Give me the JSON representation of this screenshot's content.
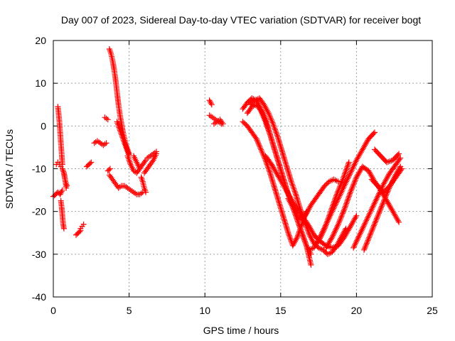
{
  "chart_data": {
    "type": "scatter",
    "title": "Day 007 of 2023, Sidereal Day-to-day VTEC variation (SDTVAR) for receiver bogt",
    "xlabel": "GPS time / hours",
    "ylabel": "SDTVAR / TECUs",
    "xlim": [
      0,
      25
    ],
    "ylim": [
      -40,
      20
    ],
    "xticks": [
      0,
      5,
      10,
      15,
      20,
      25
    ],
    "yticks": [
      -40,
      -30,
      -20,
      -10,
      0,
      10,
      20
    ],
    "grid": true,
    "legend": "none",
    "marker": "+",
    "color": "#ff0000",
    "traces": [
      {
        "x": [
          0.0,
          0.15,
          0.3,
          0.45,
          0.6
        ],
        "y": [
          -16.5,
          -16.0,
          -15.5,
          -16.0,
          -15.0
        ]
      },
      {
        "x": [
          0.2,
          0.3,
          0.4,
          0.5,
          0.6,
          0.7,
          0.8,
          0.9
        ],
        "y": [
          -9.0,
          -8.5,
          -9.0,
          -9.5,
          -10.0,
          -11.0,
          -13.0,
          -14.0
        ]
      },
      {
        "x": [
          0.3,
          0.35,
          0.4,
          0.45,
          0.5,
          0.55,
          0.6
        ],
        "y": [
          4.5,
          3.0,
          1.0,
          -1.5,
          -4.0,
          -6.5,
          -9.0
        ]
      },
      {
        "x": [
          0.5,
          0.55,
          0.6,
          0.65,
          0.7
        ],
        "y": [
          -17.5,
          -19.0,
          -21.0,
          -23.0,
          -24.0
        ]
      },
      {
        "x": [
          0.7,
          0.8,
          0.85
        ],
        "y": [
          -11.0,
          -13.0,
          -14.5
        ]
      },
      {
        "x": [
          1.5,
          1.65,
          1.8
        ],
        "y": [
          -25.5,
          -25.0,
          -24.5
        ]
      },
      {
        "x": [
          1.8,
          1.9,
          2.0
        ],
        "y": [
          -24.0,
          -23.5,
          -23.0
        ]
      },
      {
        "x": [
          2.2,
          2.35,
          2.5
        ],
        "y": [
          -9.5,
          -9.0,
          -8.5
        ]
      },
      {
        "x": [
          2.7,
          2.9,
          3.1,
          3.3,
          3.5
        ],
        "y": [
          -4.0,
          -3.5,
          -4.0,
          -4.5,
          -4.0
        ]
      },
      {
        "x": [
          3.4,
          3.6
        ],
        "y": [
          2.0,
          1.5
        ]
      },
      {
        "x": [
          3.6,
          3.75
        ],
        "y": [
          -10.5,
          -10.0
        ]
      },
      {
        "x": [
          3.7,
          3.9,
          4.1,
          4.3,
          4.5,
          4.7,
          4.9,
          5.1,
          5.3,
          5.5,
          5.7,
          5.9
        ],
        "y": [
          -11.5,
          -12.5,
          -13.5,
          -14.5,
          -14.0,
          -14.0,
          -14.5,
          -15.0,
          -15.5,
          -16.0,
          -16.0,
          -15.5
        ]
      },
      {
        "x": [
          3.7,
          3.8,
          3.9,
          4.0,
          4.1,
          4.2,
          4.3,
          4.4,
          4.5,
          4.6,
          4.7,
          4.8,
          4.9,
          5.0
        ],
        "y": [
          18.0,
          17.0,
          15.5,
          13.5,
          11.0,
          8.0,
          5.0,
          2.5,
          0.5,
          -1.5,
          -3.0,
          -4.5,
          -5.5,
          -6.5
        ]
      },
      {
        "x": [
          4.2,
          4.4,
          4.6,
          4.8,
          5.0
        ],
        "y": [
          1.0,
          -1.0,
          -3.0,
          -5.0,
          -7.0
        ]
      },
      {
        "x": [
          4.9,
          5.1,
          5.3,
          5.5,
          5.7
        ],
        "y": [
          -7.0,
          -9.0,
          -10.5,
          -11.0,
          -10.0
        ]
      },
      {
        "x": [
          5.3,
          5.5,
          5.7,
          5.9,
          6.1
        ],
        "y": [
          -7.0,
          -8.5,
          -10.0,
          -9.0,
          -8.0
        ]
      },
      {
        "x": [
          5.8,
          5.9,
          6.0,
          6.1
        ],
        "y": [
          -12.0,
          -13.0,
          -14.5,
          -15.5
        ]
      },
      {
        "x": [
          6.0,
          6.2,
          6.4,
          6.6,
          6.8
        ],
        "y": [
          -11.0,
          -10.0,
          -9.0,
          -8.0,
          -6.5
        ]
      },
      {
        "x": [
          6.2,
          6.4,
          6.6,
          6.8
        ],
        "y": [
          -7.5,
          -7.0,
          -6.5,
          -6.0
        ]
      },
      {
        "x": [
          10.3,
          10.45
        ],
        "y": [
          6.0,
          5.0
        ]
      },
      {
        "x": [
          10.3,
          10.5,
          10.7,
          10.9,
          11.1
        ],
        "y": [
          2.5,
          2.0,
          1.5,
          1.0,
          0.5
        ]
      },
      {
        "x": [
          10.6,
          10.8,
          11.0,
          11.2
        ],
        "y": [
          0.5,
          1.0,
          1.5,
          0.5
        ]
      },
      {
        "x": [
          12.5,
          12.8,
          13.1,
          13.4,
          13.7,
          14.0,
          14.3,
          14.6,
          14.9,
          15.2,
          15.5,
          15.8,
          16.1,
          16.4,
          16.7,
          17.0
        ],
        "y": [
          4.0,
          5.5,
          6.5,
          6.0,
          4.0,
          1.5,
          -2.0,
          -5.5,
          -9.0,
          -12.5,
          -16.0,
          -19.0,
          -22.0,
          -25.0,
          -28.0,
          -30.0
        ]
      },
      {
        "x": [
          12.8,
          13.1,
          13.4,
          13.7,
          14.0,
          14.3,
          14.6,
          14.9,
          15.2,
          15.5,
          15.8,
          16.1,
          16.4,
          16.7,
          17.0
        ],
        "y": [
          3.0,
          4.5,
          5.0,
          3.5,
          1.0,
          -2.0,
          -5.5,
          -9.0,
          -12.5,
          -16.0,
          -19.0,
          -22.0,
          -25.0,
          -28.0,
          -32.5
        ]
      },
      {
        "x": [
          12.5,
          12.8,
          13.1,
          13.4,
          13.7,
          14.0,
          14.3,
          14.6,
          14.9,
          15.2,
          15.5,
          15.8,
          16.1,
          16.4,
          16.7
        ],
        "y": [
          1.0,
          0.0,
          -1.5,
          -3.0,
          -5.5,
          -8.0,
          -11.0,
          -14.5,
          -18.0,
          -21.5,
          -25.0,
          -28.0,
          -26.0,
          -23.0,
          -20.0
        ]
      },
      {
        "x": [
          13.0,
          13.3,
          13.6,
          13.9,
          14.2,
          14.5,
          14.8,
          15.1,
          15.4,
          15.7,
          16.0,
          16.3,
          16.6,
          16.9,
          17.2,
          17.5,
          17.8,
          18.1,
          18.4,
          18.7,
          19.0,
          19.3
        ],
        "y": [
          5.0,
          6.0,
          6.5,
          5.0,
          3.0,
          0.5,
          -2.5,
          -6.0,
          -9.5,
          -13.0,
          -16.0,
          -19.5,
          -22.5,
          -25.5,
          -27.5,
          -28.5,
          -29.0,
          -30.0,
          -29.5,
          -28.0,
          -26.0,
          -24.0
        ]
      },
      {
        "x": [
          14.0,
          14.4,
          14.8,
          15.2,
          15.6,
          16.0,
          16.4,
          16.8,
          17.2,
          17.6,
          18.0,
          18.4,
          18.8,
          19.2,
          19.6,
          20.0
        ],
        "y": [
          -7.0,
          -9.0,
          -11.5,
          -14.0,
          -16.5,
          -19.0,
          -21.0,
          -23.0,
          -25.5,
          -27.0,
          -28.0,
          -28.5,
          -28.0,
          -26.0,
          -23.5,
          -21.0
        ]
      },
      {
        "x": [
          15.5,
          15.8,
          16.1,
          16.4,
          16.7,
          17.0,
          17.3,
          17.6,
          17.9,
          18.2,
          18.5,
          18.8
        ],
        "y": [
          -17.0,
          -19.0,
          -21.0,
          -22.0,
          -20.5,
          -18.5,
          -17.0,
          -15.5,
          -14.0,
          -13.0,
          -12.5,
          -13.0
        ]
      },
      {
        "x": [
          16.8,
          17.2,
          17.6,
          18.0,
          18.4,
          18.8,
          19.2,
          19.6,
          20.0,
          20.4,
          20.8,
          21.2
        ],
        "y": [
          -29.0,
          -28.5,
          -26.0,
          -23.0,
          -20.0,
          -17.0,
          -14.0,
          -11.0,
          -8.0,
          -5.5,
          -3.0,
          -1.5
        ]
      },
      {
        "x": [
          17.5,
          17.9,
          18.3,
          18.7,
          19.1,
          19.5
        ],
        "y": [
          -27.0,
          -24.0,
          -20.0,
          -16.0,
          -12.5,
          -8.5
        ]
      },
      {
        "x": [
          18.0,
          18.4,
          18.8,
          19.2,
          19.6,
          20.0,
          20.4,
          20.8,
          21.2,
          21.6,
          22.0,
          22.4,
          22.8
        ],
        "y": [
          -28.5,
          -26.0,
          -23.0,
          -19.5,
          -15.5,
          -12.0,
          -9.5,
          -10.5,
          -13.0,
          -15.0,
          -17.5,
          -20.0,
          -22.5
        ]
      },
      {
        "x": [
          19.8,
          20.2,
          20.6,
          21.0,
          21.4,
          21.8,
          22.2,
          22.6,
          22.9
        ],
        "y": [
          -28.5,
          -25.5,
          -22.5,
          -19.5,
          -16.5,
          -13.5,
          -11.0,
          -9.0,
          -7.5
        ]
      },
      {
        "x": [
          20.5,
          20.9,
          21.3,
          21.7,
          22.1,
          22.5,
          22.9
        ],
        "y": [
          -29.0,
          -25.5,
          -22.0,
          -18.5,
          -15.0,
          -12.0,
          -9.5
        ]
      },
      {
        "x": [
          21.0,
          21.4,
          21.8,
          22.2,
          22.6,
          23.0
        ],
        "y": [
          -12.5,
          -14.0,
          -15.5,
          -14.0,
          -12.0,
          -10.0
        ]
      },
      {
        "x": [
          21.2,
          21.6,
          22.0,
          22.4,
          22.8
        ],
        "y": [
          -5.5,
          -7.0,
          -8.5,
          -8.0,
          -6.5
        ]
      }
    ]
  }
}
